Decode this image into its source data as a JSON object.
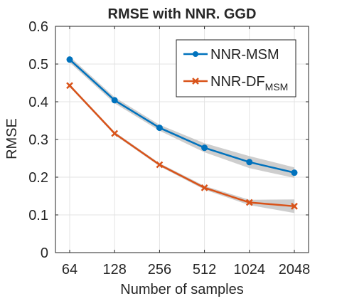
{
  "chart_data": {
    "type": "line",
    "title": "RMSE with NNR. GGD",
    "xlabel": "Number of samples",
    "ylabel": "RMSE",
    "categories": [
      "64",
      "128",
      "256",
      "512",
      "1024",
      "2048"
    ],
    "ylim": [
      0,
      0.6
    ],
    "yticks": [
      "0",
      "0.1",
      "0.2",
      "0.3",
      "0.4",
      "0.5",
      "0.6"
    ],
    "grid": true,
    "legend_position": "top-right",
    "series": [
      {
        "name": "NNR-MSM",
        "legend_main": "NNR-MSM",
        "legend_sub": "",
        "values": [
          0.512,
          0.404,
          0.331,
          0.278,
          0.24,
          0.212
        ],
        "band": [
          0.008,
          0.008,
          0.008,
          0.012,
          0.016,
          0.014
        ],
        "color": "#0072BD",
        "marker": "circle"
      },
      {
        "name": "NNR-DFMSM",
        "legend_main": "NNR-DF",
        "legend_sub": "MSM",
        "values": [
          0.443,
          0.316,
          0.233,
          0.172,
          0.133,
          0.123
        ],
        "band": [
          0.004,
          0.004,
          0.004,
          0.005,
          0.007,
          0.018
        ],
        "color": "#D95319",
        "marker": "x"
      }
    ],
    "band_color": "#bdbdbd"
  }
}
